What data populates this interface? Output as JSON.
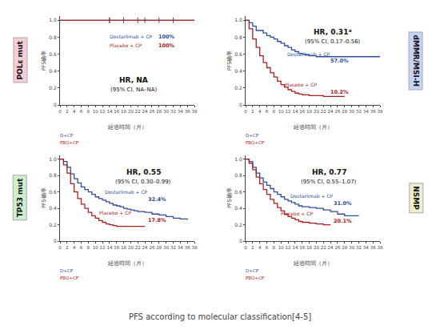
{
  "title": "PFS according to molecular classification[4-5]",
  "chart_data": [
    {
      "type": "step",
      "title": "POLε mut",
      "color": "#f9cdd8",
      "xlabel": "経過時間（月）",
      "ylabel": "PFS确率",
      "xlim": [
        0,
        38
      ],
      "ylim": [
        0,
        1.05
      ],
      "xticks": [
        0,
        2,
        4,
        6,
        8,
        10,
        12,
        14,
        16,
        18,
        20,
        22,
        24,
        26,
        28,
        30,
        32,
        34,
        36,
        38
      ],
      "yticks": [
        0,
        0.2,
        0.4,
        0.6,
        0.8,
        {
          "value": 1.0,
          "label": "1.0"
        }
      ],
      "grid": false,
      "series": [
        {
          "name": "Dostarlimab + CP",
          "color": "#2e4da0",
          "x": [
            0,
            38
          ],
          "values": [
            1.0,
            1.0
          ]
        },
        {
          "name": "Placebo + CP",
          "color": "#b02020",
          "x": [
            0,
            38
          ],
          "values": [
            1.0,
            1.0
          ]
        },
        {
          "type": "scatter",
          "marker": "|",
          "color": "#2e4da0",
          "x": [
            14,
            18,
            24,
            28,
            32
          ],
          "values": [
            1.0,
            1.0,
            1.0,
            1.0,
            1.0
          ]
        },
        {
          "type": "scatter",
          "marker": "|",
          "color": "#b02020",
          "x": [
            14,
            22
          ],
          "values": [
            1.0,
            1.0
          ]
        }
      ],
      "annotations": [
        {
          "text": "HR, NA"
        },
        {
          "text": "(95% CI, NA–NA)"
        },
        {
          "text": "100%",
          "color": "#2e4da0"
        },
        {
          "text": "100%",
          "color": "#b02020"
        },
        {
          "text": "D+CP",
          "color": "#2e4da0"
        },
        {
          "text": "PBO+CP",
          "color": "#b02020"
        }
      ]
    },
    {
      "type": "step",
      "title": "dMMR/MSI-H",
      "color": "#c5d3f5",
      "xlabel": "経過時間（月）",
      "ylabel": "PFS确率",
      "xlim": [
        0,
        38
      ],
      "ylim": [
        0,
        1.05
      ],
      "xticks": [
        0,
        2,
        4,
        6,
        8,
        10,
        12,
        14,
        16,
        18,
        20,
        22,
        24,
        26,
        28,
        30,
        32,
        34,
        36,
        38
      ],
      "yticks": [
        0,
        0.2,
        0.4,
        0.6,
        0.8,
        {
          "value": 1.0,
          "label": "1.0"
        }
      ],
      "grid": false,
      "series": [
        {
          "name": "Dostarlimab + CP",
          "color": "#2e4da0",
          "x": [
            0,
            1,
            2,
            3,
            4,
            5,
            6,
            7,
            8,
            9,
            10,
            11,
            12,
            13,
            14,
            15,
            16,
            17,
            18,
            20,
            22,
            24,
            26,
            28,
            30,
            32,
            34,
            36,
            38
          ],
          "values": [
            1.0,
            0.97,
            0.93,
            0.88,
            0.88,
            0.85,
            0.82,
            0.8,
            0.78,
            0.75,
            0.73,
            0.7,
            0.68,
            0.65,
            0.63,
            0.61,
            0.6,
            0.59,
            0.58,
            0.57,
            0.57,
            0.57,
            0.57,
            0.57,
            0.57,
            0.57,
            0.57,
            0.57,
            0.57
          ]
        },
        {
          "name": "Placebo + CP",
          "color": "#b02020",
          "x": [
            0,
            1,
            2,
            3,
            4,
            5,
            6,
            7,
            8,
            9,
            10,
            11,
            12,
            13,
            14,
            15,
            16,
            18,
            20,
            22,
            24,
            26,
            28
          ],
          "values": [
            1.0,
            0.9,
            0.78,
            0.68,
            0.58,
            0.5,
            0.44,
            0.38,
            0.33,
            0.28,
            0.24,
            0.21,
            0.18,
            0.16,
            0.14,
            0.13,
            0.12,
            0.11,
            0.11,
            0.1,
            0.1,
            0.1,
            0.1
          ]
        }
      ],
      "annotations": [
        {
          "text": "HR, 0.31ᵃ"
        },
        {
          "text": "(95% CI, 0.17–0.56)"
        },
        {
          "text": "57.0%",
          "color": "#2e4da0"
        },
        {
          "text": "10.2%",
          "color": "#b02020"
        },
        {
          "text": "D+CP",
          "color": "#2e4da0"
        },
        {
          "text": "PBO+CP",
          "color": "#b02020"
        }
      ]
    },
    {
      "type": "step",
      "title": "TP53 mut",
      "color": "#cdf0cc",
      "xlabel": "経過時間（月）",
      "ylabel": "PFS确率",
      "xlim": [
        0,
        38
      ],
      "ylim": [
        0,
        1.05
      ],
      "xticks": [
        0,
        2,
        4,
        6,
        8,
        10,
        12,
        14,
        16,
        18,
        20,
        22,
        24,
        26,
        28,
        30,
        32,
        34,
        36,
        38
      ],
      "yticks": [
        0,
        0.2,
        0.4,
        0.6,
        0.8,
        {
          "value": 1.0,
          "label": "1.0"
        }
      ],
      "grid": false,
      "series": [
        {
          "name": "Dostarlimab + CP",
          "color": "#2e4da0",
          "x": [
            0,
            1,
            2,
            3,
            4,
            5,
            6,
            7,
            8,
            9,
            10,
            11,
            12,
            13,
            14,
            15,
            16,
            17,
            18,
            19,
            20,
            21,
            22,
            24,
            26,
            28,
            30,
            32,
            34,
            36
          ],
          "values": [
            1.0,
            0.97,
            0.9,
            0.82,
            0.76,
            0.71,
            0.66,
            0.63,
            0.6,
            0.57,
            0.54,
            0.52,
            0.5,
            0.48,
            0.46,
            0.44,
            0.43,
            0.42,
            0.4,
            0.39,
            0.38,
            0.37,
            0.36,
            0.35,
            0.33,
            0.32,
            0.3,
            0.28,
            0.27,
            0.26
          ]
        },
        {
          "name": "Placebo + CP",
          "color": "#b02020",
          "x": [
            0,
            1,
            2,
            3,
            4,
            5,
            6,
            7,
            8,
            9,
            10,
            11,
            12,
            13,
            14,
            15,
            16,
            18,
            20,
            22,
            24
          ],
          "values": [
            1.0,
            0.93,
            0.83,
            0.7,
            0.6,
            0.52,
            0.45,
            0.4,
            0.35,
            0.31,
            0.28,
            0.25,
            0.23,
            0.21,
            0.2,
            0.19,
            0.18,
            0.18,
            0.18,
            0.18,
            0.18
          ]
        }
      ],
      "annotations": [
        {
          "text": "HR, 0.55"
        },
        {
          "text": "(95% CI, 0.30–0.99)"
        },
        {
          "text": "32.4%",
          "color": "#2e4da0"
        },
        {
          "text": "17.8%",
          "color": "#b02020"
        },
        {
          "text": "D+CP",
          "color": "#2e4da0"
        },
        {
          "text": "PBO+CP",
          "color": "#b02020"
        }
      ]
    },
    {
      "type": "step",
      "title": "NSMP",
      "color": "#f0efcc",
      "xlabel": "経過時間（月）",
      "ylabel": "PFS确率",
      "xlim": [
        0,
        38
      ],
      "ylim": [
        0,
        1.05
      ],
      "xticks": [
        0,
        2,
        4,
        6,
        8,
        10,
        12,
        14,
        16,
        18,
        20,
        22,
        24,
        26,
        28,
        30,
        32,
        34,
        36,
        38
      ],
      "yticks": [
        0,
        0.2,
        0.4,
        0.6,
        0.8,
        {
          "value": 1.0,
          "label": "1.0"
        }
      ],
      "grid": false,
      "series": [
        {
          "name": "Dostarlimab + CP",
          "color": "#2e4da0",
          "x": [
            0,
            1,
            2,
            3,
            4,
            5,
            6,
            7,
            8,
            9,
            10,
            11,
            12,
            13,
            14,
            15,
            16,
            18,
            20,
            22,
            24,
            26,
            28,
            30,
            32
          ],
          "values": [
            1.0,
            0.97,
            0.9,
            0.83,
            0.77,
            0.72,
            0.68,
            0.64,
            0.6,
            0.57,
            0.54,
            0.51,
            0.49,
            0.47,
            0.45,
            0.43,
            0.42,
            0.41,
            0.4,
            0.38,
            0.36,
            0.33,
            0.31,
            0.31,
            0.31
          ]
        },
        {
          "name": "Placebo + CP",
          "color": "#b02020",
          "x": [
            0,
            1,
            2,
            3,
            4,
            5,
            6,
            7,
            8,
            9,
            10,
            11,
            12,
            13,
            14,
            15,
            16,
            18,
            20,
            22,
            24
          ],
          "values": [
            1.0,
            0.95,
            0.87,
            0.78,
            0.7,
            0.63,
            0.57,
            0.51,
            0.46,
            0.41,
            0.37,
            0.33,
            0.3,
            0.28,
            0.26,
            0.24,
            0.23,
            0.22,
            0.21,
            0.2,
            0.2
          ]
        }
      ],
      "annotations": [
        {
          "text": "HR, 0.77"
        },
        {
          "text": "(95% CI, 0.55–1.07)"
        },
        {
          "text": "31.0%",
          "color": "#2e4da0"
        },
        {
          "text": "20.1%",
          "color": "#b02020"
        },
        {
          "text": "D+CP",
          "color": "#2e4da0"
        },
        {
          "text": "PBO+CP",
          "color": "#b02020"
        }
      ]
    }
  ]
}
